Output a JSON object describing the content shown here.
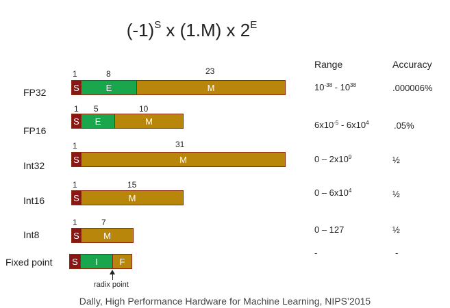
{
  "formula": {
    "base1": "(-1)",
    "exp1": "S",
    "mid": " x (1.M) x 2",
    "exp2": "E"
  },
  "headers": {
    "range": "Range",
    "accuracy": "Accuracy"
  },
  "rows": [
    {
      "label": "FP32",
      "bits": [
        "1",
        "8",
        "23"
      ],
      "cells": [
        "S",
        "E",
        "M"
      ],
      "range": {
        "a": "10",
        "a_exp": "-38",
        "sep": " - 10",
        "b_exp": "38"
      },
      "accuracy": ".000006%"
    },
    {
      "label": "FP16",
      "bits": [
        "1",
        "5",
        "10"
      ],
      "cells": [
        "S",
        "E",
        "M"
      ],
      "range": {
        "a": "6x10",
        "a_exp": "-5",
        "sep": " - 6x10",
        "b_exp": "4"
      },
      "accuracy": ".05%"
    },
    {
      "label": "Int32",
      "bits": [
        "1",
        "31"
      ],
      "cells": [
        "S",
        "M"
      ],
      "range": {
        "a": "0 – 2x10",
        "a_exp": "9"
      },
      "accuracy": "½"
    },
    {
      "label": "Int16",
      "bits": [
        "1",
        "15"
      ],
      "cells": [
        "S",
        "M"
      ],
      "range": {
        "a": "0 – 6x10",
        "a_exp": "4"
      },
      "accuracy": "½"
    },
    {
      "label": "Int8",
      "bits": [
        "1",
        "7"
      ],
      "cells": [
        "S",
        "M"
      ],
      "range": {
        "a": "0 – 127"
      },
      "accuracy": "½"
    },
    {
      "label": "Fixed point",
      "cells": [
        "S",
        "I",
        "F"
      ],
      "range": {
        "a": "-"
      },
      "accuracy": "-"
    }
  ],
  "radix_label": "radix point",
  "caption": "Dally, High Performance Hardware for Machine Learning, NIPS’2015",
  "colors": {
    "sign": "#8b1616",
    "exponent": "#1aa64c",
    "mantissa": "#b8860b"
  }
}
